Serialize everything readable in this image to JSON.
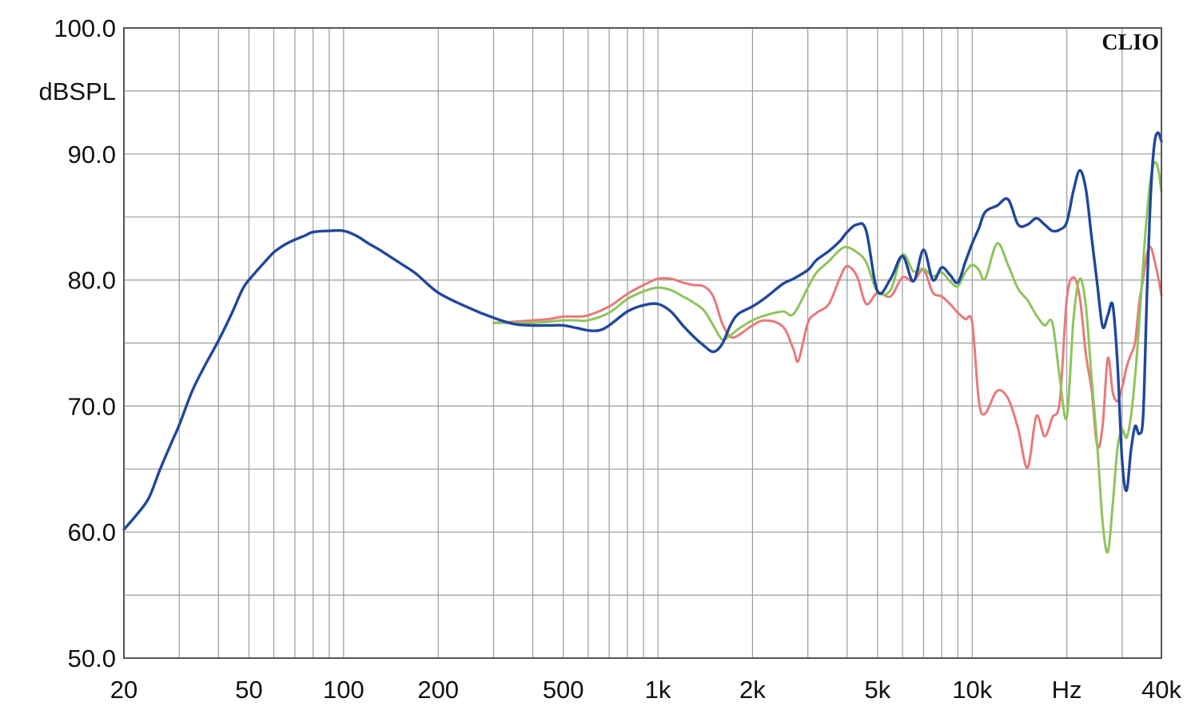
{
  "chart_data": {
    "type": "line",
    "brand": "CLIO",
    "ylabel": "dBSPL",
    "x_scale": "log",
    "xlim": [
      20,
      40000
    ],
    "ylim": [
      50,
      100
    ],
    "grid": true,
    "y_ticks": [
      {
        "value": 100,
        "label": "100.0"
      },
      {
        "value": 90,
        "label": "90.0"
      },
      {
        "value": 80,
        "label": "80.0"
      },
      {
        "value": 70,
        "label": "70.0"
      },
      {
        "value": 60,
        "label": "60.0"
      },
      {
        "value": 50,
        "label": "50.0"
      }
    ],
    "y_unit_label": {
      "value": 95,
      "label": "dBSPL"
    },
    "x_ticks": [
      {
        "value": 20,
        "label": "20"
      },
      {
        "value": 50,
        "label": "50"
      },
      {
        "value": 100,
        "label": "100"
      },
      {
        "value": 200,
        "label": "200"
      },
      {
        "value": 500,
        "label": "500"
      },
      {
        "value": 1000,
        "label": "1k"
      },
      {
        "value": 2000,
        "label": "2k"
      },
      {
        "value": 5000,
        "label": "5k"
      },
      {
        "value": 10000,
        "label": "10k"
      },
      {
        "value": 20000,
        "label": "Hz"
      },
      {
        "value": 40000,
        "label": "40k"
      }
    ],
    "series": [
      {
        "color": "#e8797b",
        "x": [
          300,
          350,
          400,
          450,
          500,
          550,
          600,
          700,
          800,
          900,
          1000,
          1100,
          1200,
          1300,
          1400,
          1500,
          1600,
          1700,
          1800,
          2000,
          2200,
          2500,
          2700,
          2800,
          3000,
          3200,
          3500,
          3800,
          4000,
          4300,
          4600,
          5000,
          5500,
          6000,
          6500,
          7000,
          7500,
          8000,
          8500,
          9000,
          9500,
          10000,
          10500,
          11000,
          12000,
          13000,
          14000,
          15000,
          16000,
          17000,
          18000,
          19000,
          20000,
          21000,
          22000,
          23000,
          24000,
          25000,
          26000,
          27000,
          28000,
          29000,
          30000,
          31000,
          32000,
          33000,
          34000,
          35000,
          36000,
          37000,
          38000,
          39000,
          40000
        ],
        "y": [
          76.6,
          76.7,
          76.8,
          76.9,
          77.1,
          77.1,
          77.2,
          77.9,
          78.9,
          79.6,
          80.1,
          80.1,
          79.8,
          79.6,
          79.5,
          78.7,
          76.6,
          75.5,
          75.6,
          76.4,
          76.8,
          76.3,
          74.5,
          73.6,
          76.6,
          77.4,
          78.1,
          80.2,
          81.1,
          80.3,
          78.1,
          79.0,
          78.7,
          80.2,
          79.9,
          80.8,
          79.0,
          78.7,
          78.1,
          77.4,
          76.9,
          76.6,
          70.4,
          69.4,
          71.2,
          70.6,
          68.2,
          65.1,
          69.2,
          67.6,
          69.1,
          70.4,
          78.5,
          80.2,
          78.6,
          74.1,
          71.2,
          66.8,
          68.4,
          73.8,
          71.1,
          70.4,
          71.5,
          73.1,
          74.1,
          75.1,
          78.2,
          80.1,
          82.1,
          82.6,
          81.6,
          80.3,
          78.8
        ]
      },
      {
        "color": "#8ec45c",
        "x": [
          300,
          350,
          400,
          450,
          500,
          550,
          600,
          700,
          800,
          900,
          1000,
          1100,
          1200,
          1300,
          1400,
          1500,
          1600,
          1700,
          1800,
          2000,
          2200,
          2500,
          2700,
          3000,
          3200,
          3500,
          3800,
          4000,
          4300,
          4600,
          5000,
          5500,
          6000,
          6500,
          7000,
          7500,
          8000,
          8500,
          9000,
          9500,
          10000,
          10500,
          11000,
          12000,
          13000,
          14000,
          15000,
          16000,
          17000,
          18000,
          19000,
          20000,
          21000,
          22000,
          23000,
          24000,
          25000,
          26000,
          27000,
          28000,
          29000,
          30000,
          31000,
          32000,
          33000,
          34000,
          35000,
          36000,
          37000,
          38000,
          39000,
          40000
        ],
        "y": [
          76.6,
          76.6,
          76.6,
          76.7,
          76.8,
          76.8,
          76.8,
          77.4,
          78.5,
          79.1,
          79.4,
          79.2,
          78.7,
          78.2,
          77.6,
          76.4,
          75.3,
          75.6,
          76.1,
          76.8,
          77.2,
          77.5,
          77.3,
          79.4,
          80.6,
          81.5,
          82.4,
          82.6,
          82.2,
          81.4,
          79.1,
          79.2,
          82.0,
          80.7,
          80.9,
          80.3,
          80.6,
          79.9,
          79.5,
          80.6,
          81.2,
          80.8,
          80.1,
          82.9,
          81.2,
          79.3,
          78.4,
          77.2,
          76.4,
          76.6,
          72.2,
          69.1,
          76.9,
          80.1,
          77.9,
          72.1,
          66.9,
          60.8,
          58.4,
          62.2,
          66.7,
          68.1,
          67.5,
          69.2,
          72.4,
          76.6,
          81.4,
          85.3,
          88.1,
          89.3,
          88.9,
          87.0
        ]
      },
      {
        "color": "#20479b",
        "x": [
          20,
          22,
          24,
          26,
          28,
          30,
          33,
          36,
          40,
          44,
          48,
          52,
          56,
          60,
          65,
          70,
          75,
          80,
          90,
          100,
          110,
          120,
          130,
          150,
          170,
          200,
          250,
          300,
          350,
          400,
          450,
          500,
          550,
          600,
          650,
          700,
          800,
          900,
          1000,
          1100,
          1200,
          1300,
          1400,
          1500,
          1600,
          1700,
          1800,
          2000,
          2200,
          2500,
          2700,
          3000,
          3200,
          3500,
          3800,
          4000,
          4300,
          4600,
          5000,
          5500,
          6000,
          6500,
          7000,
          7500,
          8000,
          8500,
          9000,
          9500,
          10000,
          10500,
          11000,
          12000,
          13000,
          14000,
          15000,
          16000,
          17000,
          18000,
          19000,
          20000,
          21000,
          22000,
          23000,
          24000,
          25000,
          26000,
          27000,
          28000,
          29000,
          30000,
          31000,
          32000,
          33000,
          34000,
          35000,
          36000,
          37000,
          38000,
          39000,
          40000
        ],
        "y": [
          60.2,
          61.4,
          62.7,
          64.9,
          66.8,
          68.5,
          71.2,
          73.1,
          75.2,
          77.3,
          79.4,
          80.5,
          81.4,
          82.2,
          82.8,
          83.2,
          83.5,
          83.8,
          83.9,
          83.9,
          83.5,
          82.9,
          82.4,
          81.4,
          80.5,
          79.0,
          77.8,
          77.0,
          76.5,
          76.4,
          76.4,
          76.4,
          76.2,
          76.0,
          76.0,
          76.4,
          77.5,
          78.0,
          78.1,
          77.5,
          76.4,
          75.5,
          74.8,
          74.3,
          74.9,
          76.4,
          77.3,
          77.9,
          78.6,
          79.7,
          80.1,
          80.8,
          81.6,
          82.3,
          83.1,
          83.8,
          84.4,
          83.9,
          79.1,
          80.1,
          81.9,
          79.9,
          82.4,
          80.0,
          81.0,
          80.4,
          79.8,
          81.4,
          82.9,
          84.1,
          85.4,
          85.9,
          86.4,
          84.4,
          84.4,
          84.9,
          84.4,
          83.9,
          84.0,
          84.6,
          87.1,
          88.7,
          87.2,
          83.3,
          79.7,
          76.3,
          77.2,
          78.0,
          73.3,
          65.6,
          63.3,
          66.5,
          68.4,
          67.8,
          69.3,
          79.1,
          86.9,
          90.8,
          91.7,
          91.0
        ]
      }
    ]
  }
}
